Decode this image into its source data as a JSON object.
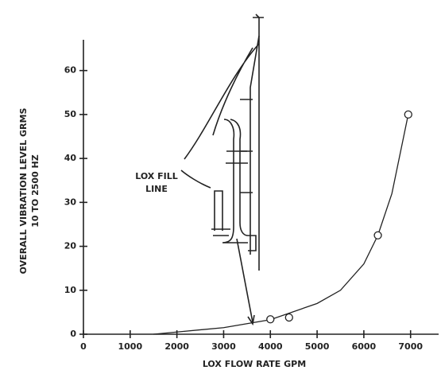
{
  "chart_data": {
    "type": "scatter",
    "y_label": "OVERALL VIBRATION LEVEL GRMS",
    "y_sublabel": "10 TO 2500 HZ",
    "x_label": "LOX FLOW RATE GPM",
    "annotation": [
      "LOX FILL",
      "LINE"
    ],
    "x": [
      4000,
      4400,
      6300,
      6950
    ],
    "values": [
      3.4,
      3.8,
      22.5,
      50
    ],
    "curve": {
      "x": [
        1500,
        2000,
        3000,
        4000,
        5000,
        5500,
        6000,
        6300,
        6600,
        6950
      ],
      "y": [
        0,
        0.5,
        1.5,
        3.3,
        7,
        10,
        16,
        22.5,
        32,
        50
      ]
    },
    "color": "#222222",
    "xlim": [
      0,
      7600
    ],
    "ylim": [
      0,
      67
    ],
    "xticks": [
      0,
      1000,
      2000,
      3000,
      4000,
      5000,
      6000,
      7000
    ],
    "yticks": [
      0,
      10,
      20,
      30,
      40,
      50,
      60
    ]
  }
}
